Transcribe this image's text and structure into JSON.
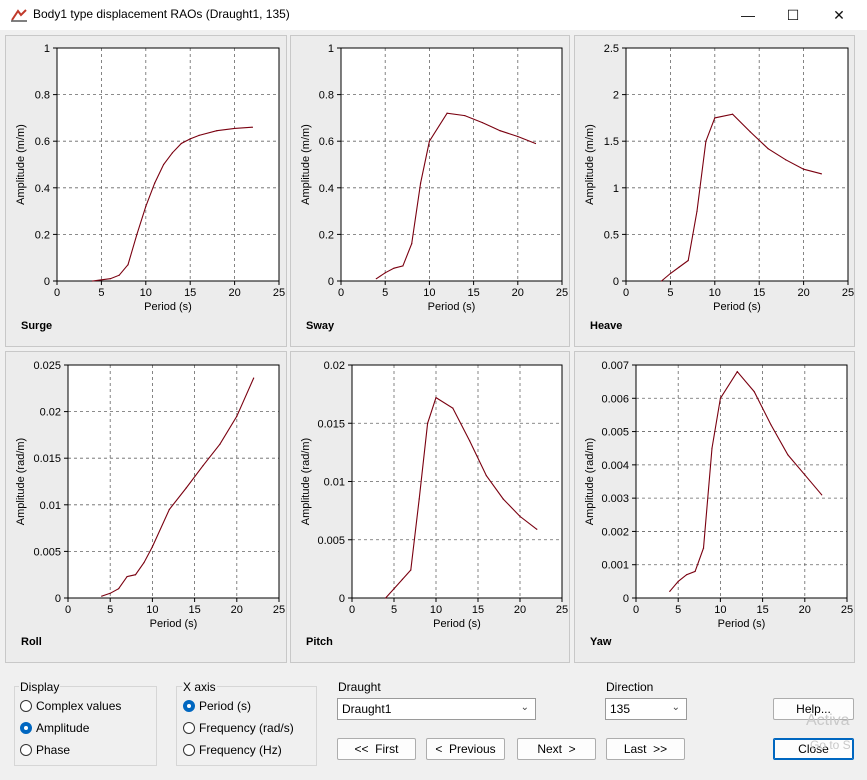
{
  "window": {
    "title": "Body1 type displacement RAOs (Draught1, 135)",
    "controls": {
      "minimize": "—",
      "maximize": "☐",
      "close": "✕"
    }
  },
  "line_color": "#7a0010",
  "chart_data": [
    {
      "type": "line",
      "label": "Surge",
      "ylabel": "Amplitude (m/m)",
      "xlabel": "Period (s)",
      "xlim": [
        0,
        25
      ],
      "ylim": [
        0,
        1
      ],
      "xticks": [
        0,
        5,
        10,
        15,
        20,
        25
      ],
      "yticks": [
        0,
        0.2,
        0.4,
        0.6,
        0.8,
        1
      ],
      "ytick_labels": [
        "0",
        "0.2",
        "0.4",
        "0.6",
        "0.8",
        "1"
      ],
      "x": [
        4,
        5,
        6,
        7,
        8,
        9,
        10,
        11,
        12,
        13,
        14,
        15,
        16,
        18,
        20,
        22
      ],
      "y": [
        0.0,
        0.005,
        0.01,
        0.025,
        0.07,
        0.2,
        0.32,
        0.42,
        0.5,
        0.55,
        0.59,
        0.61,
        0.625,
        0.645,
        0.655,
        0.66
      ]
    },
    {
      "type": "line",
      "label": "Sway",
      "ylabel": "Amplitude (m/m)",
      "xlabel": "Period (s)",
      "xlim": [
        0,
        25
      ],
      "ylim": [
        0,
        1
      ],
      "xticks": [
        0,
        5,
        10,
        15,
        20,
        25
      ],
      "yticks": [
        0,
        0.2,
        0.4,
        0.6,
        0.8,
        1
      ],
      "ytick_labels": [
        "0",
        "0.2",
        "0.4",
        "0.6",
        "0.8",
        "1"
      ],
      "x": [
        4,
        5,
        6,
        7,
        8,
        9,
        10,
        12,
        14,
        16,
        18,
        20,
        22
      ],
      "y": [
        0.01,
        0.035,
        0.055,
        0.065,
        0.16,
        0.42,
        0.6,
        0.72,
        0.71,
        0.68,
        0.645,
        0.62,
        0.59
      ]
    },
    {
      "type": "line",
      "label": "Heave",
      "ylabel": "Amplitude (m/m)",
      "xlabel": "Period (s)",
      "xlim": [
        0,
        25
      ],
      "ylim": [
        0,
        2.5
      ],
      "xticks": [
        0,
        5,
        10,
        15,
        20,
        25
      ],
      "yticks": [
        0,
        0.5,
        1,
        1.5,
        2,
        2.5
      ],
      "ytick_labels": [
        "0",
        "0.5",
        "1",
        "1.5",
        "2",
        "2.5"
      ],
      "x": [
        4,
        5,
        6,
        7,
        8,
        9,
        10,
        12,
        14,
        16,
        18,
        20,
        22
      ],
      "y": [
        0.0,
        0.08,
        0.15,
        0.22,
        0.75,
        1.5,
        1.75,
        1.79,
        1.6,
        1.42,
        1.3,
        1.2,
        1.15
      ]
    },
    {
      "type": "line",
      "label": "Roll",
      "ylabel": "Amplitude (rad/m)",
      "xlabel": "Period (s)",
      "xlim": [
        0,
        25
      ],
      "ylim": [
        0,
        0.025
      ],
      "xticks": [
        0,
        5,
        10,
        15,
        20,
        25
      ],
      "yticks": [
        0,
        0.005,
        0.01,
        0.015,
        0.02,
        0.025
      ],
      "ytick_labels": [
        "0",
        "0.005",
        "0.01",
        "0.015",
        "0.02",
        "0.025"
      ],
      "x": [
        4,
        5,
        6,
        7,
        8,
        9,
        10,
        12,
        14,
        16,
        18,
        20,
        22
      ],
      "y": [
        0.0002,
        0.0005,
        0.001,
        0.0023,
        0.0025,
        0.0038,
        0.0055,
        0.0095,
        0.0118,
        0.0142,
        0.0165,
        0.0195,
        0.0236
      ]
    },
    {
      "type": "line",
      "label": "Pitch",
      "ylabel": "Amplitude (rad/m)",
      "xlabel": "Period (s)",
      "xlim": [
        0,
        25
      ],
      "ylim": [
        0,
        0.02
      ],
      "xticks": [
        0,
        5,
        10,
        15,
        20,
        25
      ],
      "yticks": [
        0,
        0.005,
        0.01,
        0.015,
        0.02
      ],
      "ytick_labels": [
        "0",
        "0.005",
        "0.01",
        "0.015",
        "0.02"
      ],
      "x": [
        4,
        5,
        6,
        7,
        8,
        9,
        10,
        12,
        14,
        16,
        18,
        20,
        22
      ],
      "y": [
        0.0,
        0.0008,
        0.0016,
        0.0024,
        0.0085,
        0.015,
        0.0172,
        0.0163,
        0.0135,
        0.0105,
        0.0085,
        0.007,
        0.0059
      ]
    },
    {
      "type": "line",
      "label": "Yaw",
      "ylabel": "Amplitude (rad/m)",
      "xlabel": "Period (s)",
      "xlim": [
        0,
        25
      ],
      "ylim": [
        0,
        0.007
      ],
      "xticks": [
        0,
        5,
        10,
        15,
        20,
        25
      ],
      "yticks": [
        0,
        0.001,
        0.002,
        0.003,
        0.004,
        0.005,
        0.006,
        0.007
      ],
      "ytick_labels": [
        "0",
        "0.001",
        "0.002",
        "0.003",
        "0.004",
        "0.005",
        "0.006",
        "0.007"
      ],
      "x": [
        4,
        5,
        6,
        7,
        8,
        9,
        10,
        12,
        14,
        16,
        18,
        20,
        22
      ],
      "y": [
        0.0002,
        0.0005,
        0.0007,
        0.0008,
        0.0015,
        0.0045,
        0.006,
        0.0068,
        0.0062,
        0.0052,
        0.0043,
        0.0037,
        0.0031
      ]
    }
  ],
  "display": {
    "title": "Display",
    "options": [
      "Complex values",
      "Amplitude",
      "Phase"
    ],
    "selected": 1
  },
  "xaxis": {
    "title": "X axis",
    "options": [
      "Period (s)",
      "Frequency (rad/s)",
      "Frequency (Hz)"
    ],
    "selected": 0
  },
  "draught": {
    "label": "Draught",
    "value": "Draught1"
  },
  "direction": {
    "label": "Direction",
    "value": "135"
  },
  "buttons": {
    "first": "<<  First",
    "previous": "<  Previous",
    "next": "Next  >",
    "last": "Last  >>",
    "help": "Help...",
    "close": "Close"
  },
  "watermark": {
    "line1": "Activa",
    "line2": "Go to S"
  }
}
